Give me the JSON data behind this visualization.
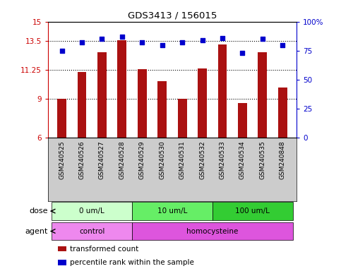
{
  "title": "GDS3413 / 156015",
  "samples": [
    "GSM240525",
    "GSM240526",
    "GSM240527",
    "GSM240528",
    "GSM240529",
    "GSM240530",
    "GSM240531",
    "GSM240532",
    "GSM240533",
    "GSM240534",
    "GSM240535",
    "GSM240848"
  ],
  "bar_values": [
    9.0,
    11.1,
    12.6,
    13.55,
    11.3,
    10.4,
    9.0,
    11.35,
    13.25,
    8.65,
    12.6,
    9.9
  ],
  "dot_values": [
    75,
    82,
    85,
    87,
    82,
    80,
    82,
    84,
    86,
    73,
    85,
    80
  ],
  "bar_color": "#aa1111",
  "dot_color": "#0000cc",
  "ylim_left": [
    6,
    15
  ],
  "ylim_right": [
    0,
    100
  ],
  "yticks_left": [
    6,
    9,
    11.25,
    13.5,
    15
  ],
  "yticks_right": [
    0,
    25,
    50,
    75,
    100
  ],
  "ytick_labels_left": [
    "6",
    "9",
    "11.25",
    "13.5",
    "15"
  ],
  "ytick_labels_right": [
    "0",
    "25",
    "50",
    "75",
    "100%"
  ],
  "hlines": [
    9.0,
    11.25,
    13.5
  ],
  "dose_groups": [
    {
      "label": "0 um/L",
      "start": 0,
      "end": 4,
      "color": "#ccffcc"
    },
    {
      "label": "10 um/L",
      "start": 4,
      "end": 8,
      "color": "#66ee66"
    },
    {
      "label": "100 um/L",
      "start": 8,
      "end": 12,
      "color": "#33cc33"
    }
  ],
  "agent_groups": [
    {
      "label": "control",
      "start": 0,
      "end": 4,
      "color": "#ee88ee"
    },
    {
      "label": "homocysteine",
      "start": 4,
      "end": 12,
      "color": "#dd55dd"
    }
  ],
  "legend_items": [
    {
      "color": "#aa1111",
      "label": "transformed count"
    },
    {
      "color": "#0000cc",
      "label": "percentile rank within the sample"
    }
  ],
  "dose_label": "dose",
  "agent_label": "agent",
  "background_color": "#ffffff",
  "plot_bg_color": "#ffffff",
  "xlabel_area_color": "#cccccc",
  "bar_width": 0.45
}
